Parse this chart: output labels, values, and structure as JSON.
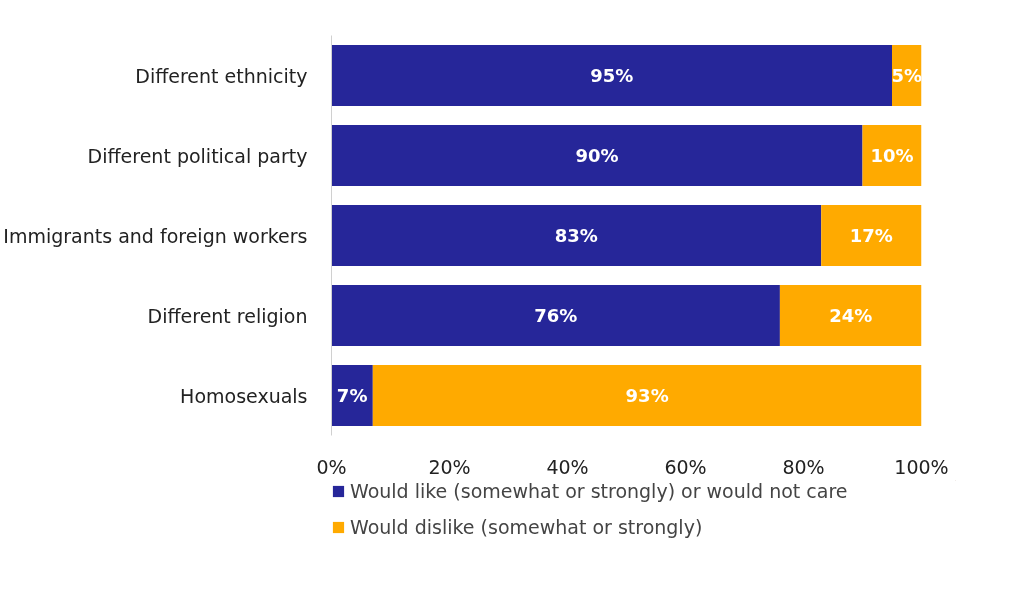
{
  "chart_data": {
    "type": "bar",
    "orientation": "horizontal",
    "stacked": true,
    "categories": [
      "Different ethnicity",
      "Different political party",
      "Immigrants and foreign workers",
      "Different religion",
      "Homosexuals"
    ],
    "series": [
      {
        "name": "Would like (somewhat or strongly) or would not care",
        "color": "#262699",
        "values": [
          95,
          90,
          83,
          76,
          7
        ],
        "value_labels": [
          "95%",
          "90%",
          "83%",
          "76%",
          "7%"
        ]
      },
      {
        "name": "Would dislike (somewhat or strongly)",
        "color": "#ffaa00",
        "values": [
          5,
          10,
          17,
          24,
          93
        ],
        "value_labels": [
          "5%",
          "10%",
          "17%",
          "24%",
          "93%"
        ]
      }
    ],
    "xlim": [
      0,
      100
    ],
    "xticks": [
      {
        "value": 0,
        "label": "0%"
      },
      {
        "value": 20,
        "label": "20%"
      },
      {
        "value": 40,
        "label": "40%"
      },
      {
        "value": 60,
        "label": "60%"
      },
      {
        "value": 80,
        "label": "80%"
      },
      {
        "value": 100,
        "label": "100%"
      }
    ],
    "grid": false,
    "legend": "bottom"
  }
}
